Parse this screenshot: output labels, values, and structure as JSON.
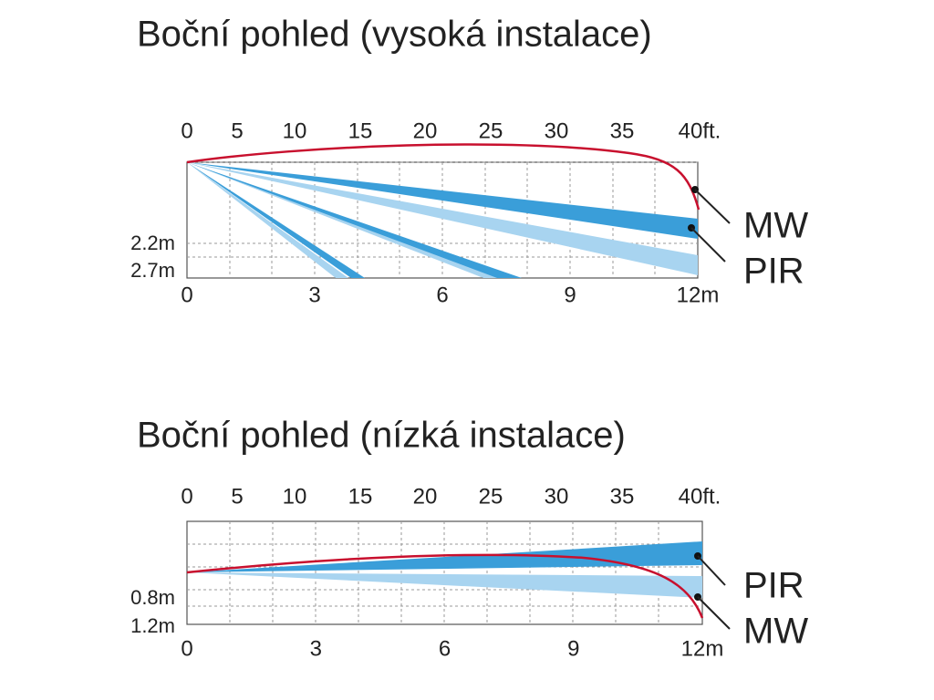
{
  "panels": [
    {
      "title": "Boční pohled (vysoká instalace)",
      "top_ticks": [
        "0",
        "5",
        "10",
        "15",
        "20",
        "25",
        "30",
        "35",
        "40ft."
      ],
      "bottom_ticks": [
        "0",
        "3",
        "6",
        "9",
        "12m"
      ],
      "height_labels": [
        "2.2m",
        "2.7m"
      ],
      "legend": [
        "MW",
        "PIR"
      ]
    },
    {
      "title": "Boční pohled (nízká instalace)",
      "top_ticks": [
        "0",
        "5",
        "10",
        "15",
        "20",
        "25",
        "30",
        "35",
        "40ft."
      ],
      "bottom_ticks": [
        "0",
        "3",
        "6",
        "9",
        "12m"
      ],
      "height_labels": [
        "0.8m",
        "1.2m"
      ],
      "legend": [
        "PIR",
        "MW"
      ]
    }
  ]
}
